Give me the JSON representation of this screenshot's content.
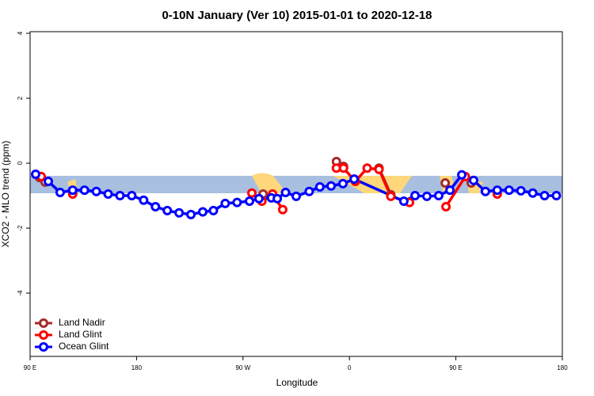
{
  "chart_data": {
    "type": "line",
    "title": "0-10N January (Ver 10)   2015-01-01 to 2020-12-18",
    "x_label": "Longitude",
    "y_label": "XCO2 - MLO trend (ppm)",
    "xlim": [
      90,
      540
    ],
    "ylim": [
      -5.95,
      4.05
    ],
    "xticks": [
      {
        "value": 90,
        "label": "90 E"
      },
      {
        "value": 180,
        "label": "180"
      },
      {
        "value": 270,
        "label": "90 W"
      },
      {
        "value": 360,
        "label": "0"
      },
      {
        "value": 450,
        "label": "90 E"
      },
      {
        "value": 540,
        "label": "180"
      }
    ],
    "yticks": [
      -4,
      -2,
      0,
      2,
      4
    ],
    "legend": "bottom-left",
    "series": [
      {
        "name": "Land Nadir",
        "color": "#a52a2a",
        "x": [
          98,
          102.7,
          null,
          287,
          null,
          349,
          355,
          null,
          385,
          395,
          null,
          441,
          null,
          463
        ],
        "values": [
          -0.44,
          -0.58,
          null,
          -0.95,
          null,
          0.05,
          -0.1,
          null,
          -0.15,
          -0.97,
          null,
          -0.61,
          null,
          -0.61
        ]
      },
      {
        "name": "Land Glint",
        "color": "#ff0000",
        "x": [
          99.4,
          null,
          126,
          null,
          277.5,
          286,
          295,
          303.6,
          null,
          349,
          355,
          365,
          375,
          385,
          395,
          410.8,
          null,
          441.6,
          458,
          null,
          485
        ],
        "values": [
          -0.41,
          null,
          -0.95,
          null,
          -0.92,
          -1.17,
          -0.95,
          -1.43,
          null,
          -0.15,
          -0.15,
          -0.56,
          -0.15,
          -0.19,
          -1.02,
          -1.21,
          null,
          -1.34,
          -0.41,
          null,
          -0.95
        ]
      },
      {
        "name": "Ocean Glint",
        "color": "#0000ff",
        "x": [
          94.7,
          105.4,
          115.4,
          126,
          136,
          146,
          156,
          166,
          176,
          186,
          196,
          206,
          216,
          226,
          236,
          245,
          255,
          265,
          275.5,
          283.5,
          294,
          299,
          306,
          315,
          326,
          335,
          344.5,
          354.5,
          364,
          406,
          415.5,
          425.5,
          435.5,
          445,
          455,
          465,
          475,
          485,
          495,
          505,
          515,
          525,
          535
        ],
        "values": [
          -0.34,
          -0.56,
          -0.9,
          -0.83,
          -0.83,
          -0.87,
          -0.95,
          -1.0,
          -1.0,
          -1.14,
          -1.34,
          -1.46,
          -1.53,
          -1.58,
          -1.5,
          -1.46,
          -1.24,
          -1.21,
          -1.17,
          -1.09,
          -1.07,
          -1.09,
          -0.9,
          -1.02,
          -0.87,
          -0.73,
          -0.7,
          -0.63,
          -0.49,
          -1.17,
          -1.0,
          -1.02,
          -1.0,
          -0.83,
          -0.36,
          -0.53,
          -0.87,
          -0.83,
          -0.83,
          -0.85,
          -0.92,
          -1.0,
          -1.0
        ]
      }
    ]
  }
}
